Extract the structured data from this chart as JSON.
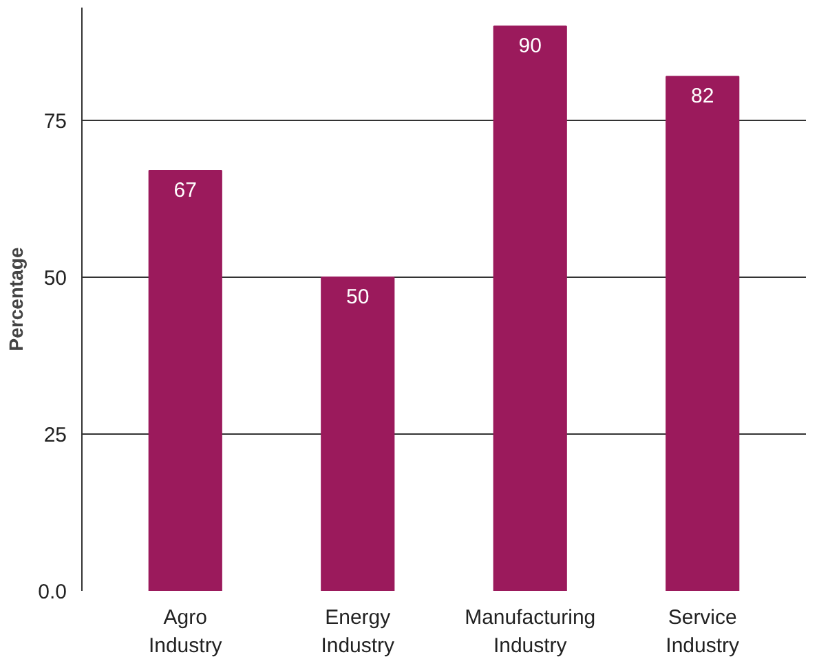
{
  "chart_data": {
    "type": "bar",
    "ylabel": "Percentage",
    "categories": [
      "Agro\nIndustry",
      "Energy\nIndustry",
      "Manufacturing\nIndustry",
      "Service\nIndustry"
    ],
    "values": [
      67,
      50,
      90,
      82
    ],
    "color": "#9b1a5c",
    "data_labels": true,
    "ylim": [
      0,
      93
    ],
    "yticks": [
      {
        "value": 0,
        "label": "0.0"
      },
      25,
      50,
      75
    ],
    "grid": "y"
  }
}
